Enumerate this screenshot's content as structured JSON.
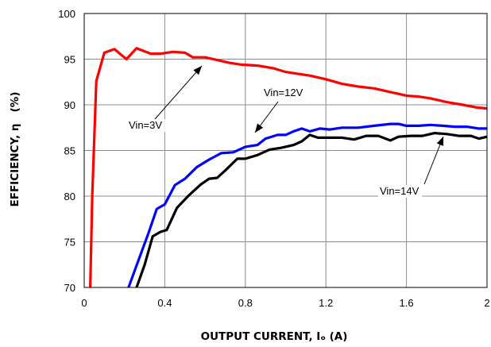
{
  "chart_data": {
    "type": "line",
    "xlabel": "OUTPUT CURRENT, Iₒ (A)",
    "ylabel": "EFFICIENCY, η   (%)",
    "xlim": [
      0,
      2
    ],
    "ylim": [
      70,
      100
    ],
    "x_ticks": [
      "0",
      "0.4",
      "0.8",
      "1.2",
      "1.6",
      "2"
    ],
    "y_ticks": [
      "100",
      "95",
      "90",
      "85",
      "80",
      "75",
      "70"
    ],
    "grid": true,
    "annotations": [
      {
        "text": "Vin=3V",
        "series": 0
      },
      {
        "text": "Vin=12V",
        "series": 1
      },
      {
        "text": "Vin=14V",
        "series": 2
      }
    ],
    "series": [
      {
        "name": "Vin=3V",
        "color": "#ff0000",
        "points": [
          [
            0.03,
            70
          ],
          [
            0.04,
            80
          ],
          [
            0.06,
            92.6
          ],
          [
            0.1,
            95.7
          ],
          [
            0.15,
            96.1
          ],
          [
            0.21,
            95.0
          ],
          [
            0.26,
            96.2
          ],
          [
            0.33,
            95.6
          ],
          [
            0.38,
            95.6
          ],
          [
            0.44,
            95.8
          ],
          [
            0.5,
            95.7
          ],
          [
            0.54,
            95.2
          ],
          [
            0.6,
            95.2
          ],
          [
            0.66,
            94.9
          ],
          [
            0.72,
            94.6
          ],
          [
            0.78,
            94.4
          ],
          [
            0.86,
            94.3
          ],
          [
            0.94,
            94.0
          ],
          [
            1.0,
            93.6
          ],
          [
            1.06,
            93.4
          ],
          [
            1.12,
            93.2
          ],
          [
            1.2,
            92.8
          ],
          [
            1.28,
            92.3
          ],
          [
            1.36,
            92.0
          ],
          [
            1.44,
            91.8
          ],
          [
            1.52,
            91.4
          ],
          [
            1.6,
            91.0
          ],
          [
            1.66,
            90.9
          ],
          [
            1.72,
            90.7
          ],
          [
            1.8,
            90.3
          ],
          [
            1.88,
            90.0
          ],
          [
            1.95,
            89.7
          ],
          [
            2.0,
            89.6
          ]
        ]
      },
      {
        "name": "Vin=12V",
        "color": "#0000ff",
        "points": [
          [
            0.22,
            70
          ],
          [
            0.27,
            73
          ],
          [
            0.32,
            76
          ],
          [
            0.36,
            78.6
          ],
          [
            0.4,
            79.1
          ],
          [
            0.45,
            81.2
          ],
          [
            0.5,
            81.9
          ],
          [
            0.56,
            83.2
          ],
          [
            0.62,
            84.0
          ],
          [
            0.68,
            84.7
          ],
          [
            0.74,
            84.8
          ],
          [
            0.8,
            85.4
          ],
          [
            0.86,
            85.6
          ],
          [
            0.9,
            86.3
          ],
          [
            0.96,
            86.7
          ],
          [
            1.0,
            86.7
          ],
          [
            1.04,
            87.1
          ],
          [
            1.08,
            87.4
          ],
          [
            1.12,
            87.1
          ],
          [
            1.17,
            87.4
          ],
          [
            1.22,
            87.3
          ],
          [
            1.28,
            87.5
          ],
          [
            1.36,
            87.5
          ],
          [
            1.44,
            87.7
          ],
          [
            1.52,
            87.9
          ],
          [
            1.56,
            87.9
          ],
          [
            1.6,
            87.7
          ],
          [
            1.66,
            87.7
          ],
          [
            1.72,
            87.8
          ],
          [
            1.78,
            87.7
          ],
          [
            1.84,
            87.6
          ],
          [
            1.9,
            87.6
          ],
          [
            1.96,
            87.4
          ],
          [
            2.0,
            87.4
          ]
        ]
      },
      {
        "name": "Vin=14V",
        "color": "#000000",
        "points": [
          [
            0.26,
            70
          ],
          [
            0.3,
            72.5
          ],
          [
            0.34,
            75.6
          ],
          [
            0.38,
            76.1
          ],
          [
            0.41,
            76.3
          ],
          [
            0.46,
            78.7
          ],
          [
            0.52,
            80.1
          ],
          [
            0.58,
            81.3
          ],
          [
            0.62,
            81.9
          ],
          [
            0.66,
            82.0
          ],
          [
            0.7,
            82.8
          ],
          [
            0.76,
            84.1
          ],
          [
            0.8,
            84.1
          ],
          [
            0.86,
            84.5
          ],
          [
            0.92,
            85.1
          ],
          [
            0.98,
            85.3
          ],
          [
            1.04,
            85.6
          ],
          [
            1.08,
            86.0
          ],
          [
            1.12,
            86.7
          ],
          [
            1.16,
            86.4
          ],
          [
            1.22,
            86.4
          ],
          [
            1.28,
            86.4
          ],
          [
            1.34,
            86.2
          ],
          [
            1.4,
            86.6
          ],
          [
            1.46,
            86.6
          ],
          [
            1.52,
            86.1
          ],
          [
            1.56,
            86.5
          ],
          [
            1.62,
            86.6
          ],
          [
            1.68,
            86.6
          ],
          [
            1.74,
            86.9
          ],
          [
            1.8,
            86.8
          ],
          [
            1.86,
            86.6
          ],
          [
            1.92,
            86.6
          ],
          [
            1.96,
            86.3
          ],
          [
            2.0,
            86.5
          ]
        ]
      }
    ]
  }
}
